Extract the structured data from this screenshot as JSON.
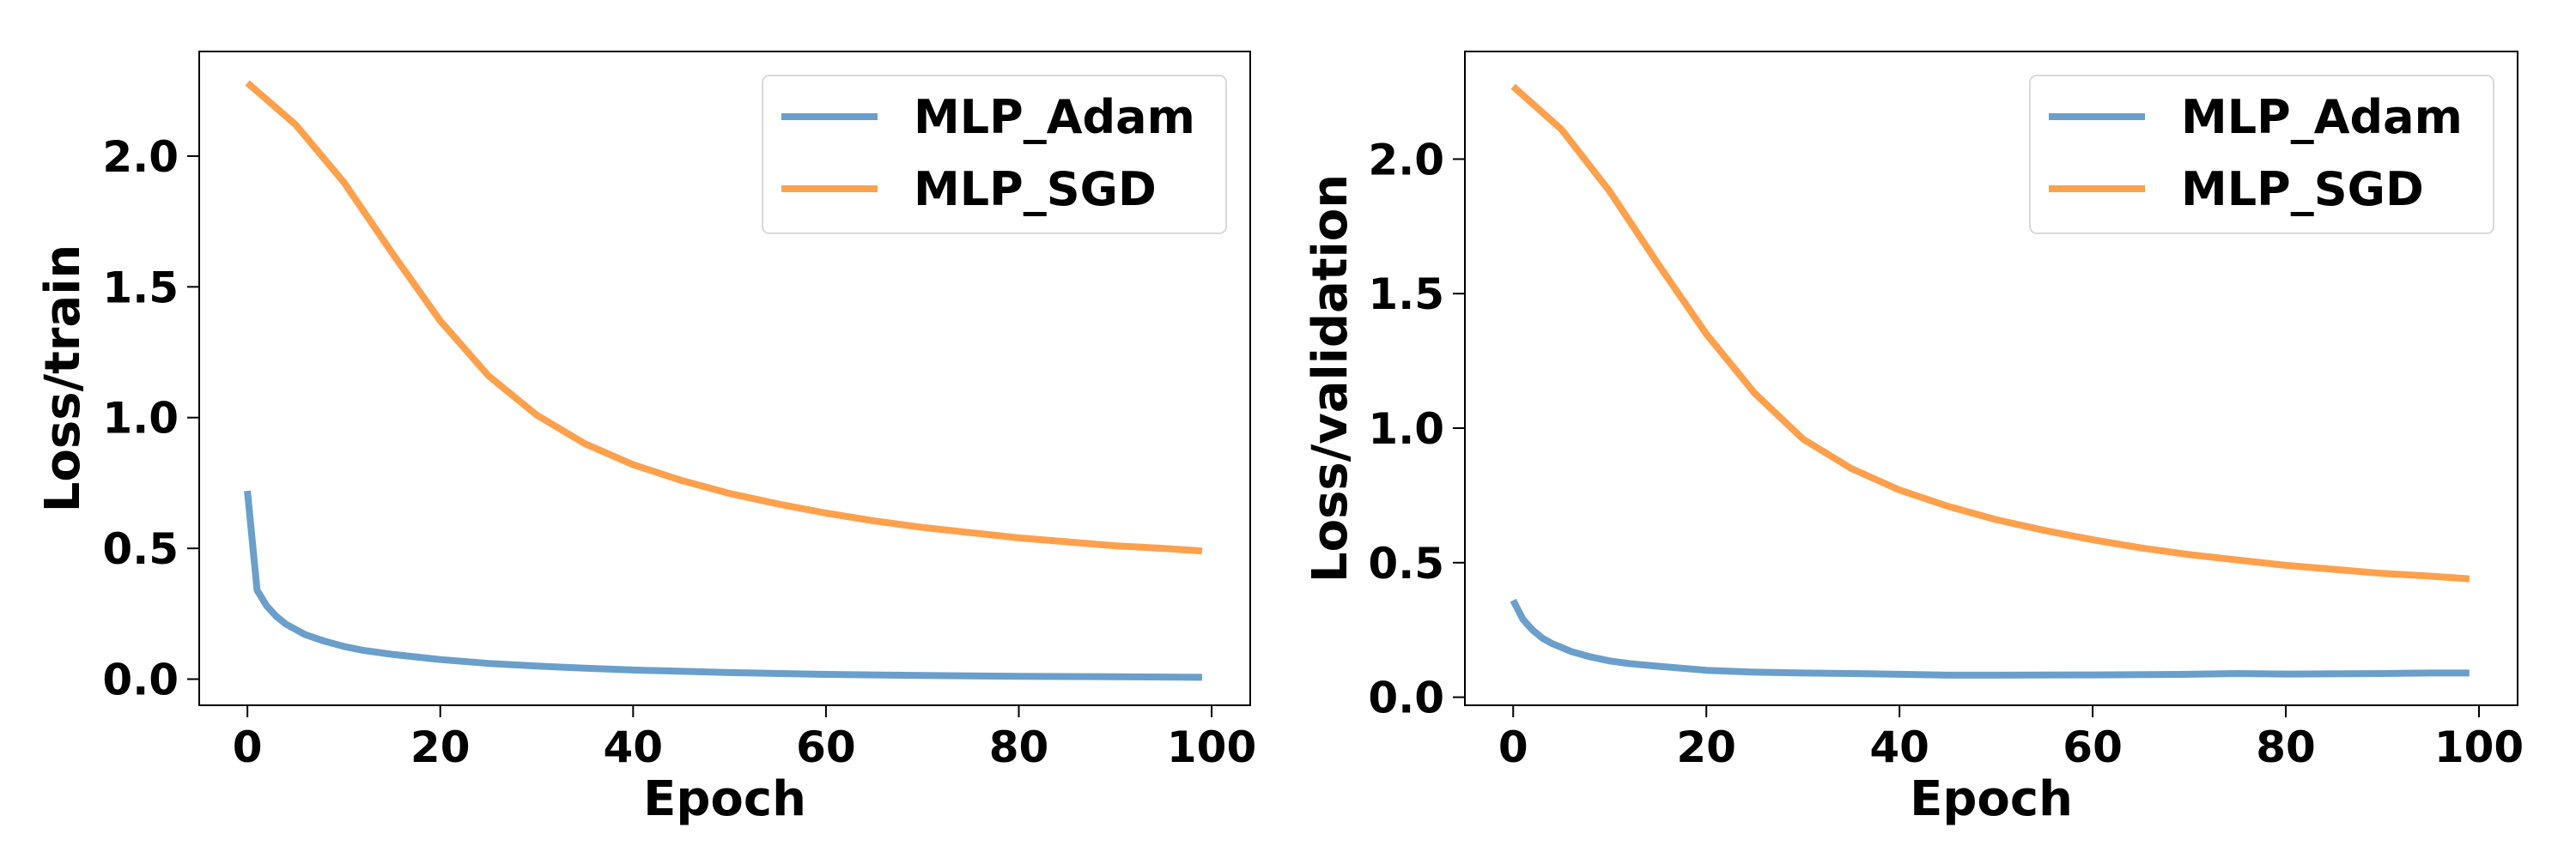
{
  "chart_data": [
    {
      "type": "line",
      "xlabel": "Epoch",
      "ylabel": "Loss/train",
      "xlim": [
        -5,
        104
      ],
      "ylim": [
        -0.1,
        2.4
      ],
      "xticks": [
        0,
        20,
        40,
        60,
        80,
        100
      ],
      "yticks": [
        0.0,
        0.5,
        1.0,
        1.5,
        2.0
      ],
      "xtick_labels": [
        "0",
        "20",
        "40",
        "60",
        "80",
        "100"
      ],
      "ytick_labels": [
        "0.0",
        "0.5",
        "1.0",
        "1.5",
        "2.0"
      ],
      "grid": false,
      "legend": "top-right",
      "series": [
        {
          "name": "MLP_Adam",
          "color": "#6a9fcb",
          "x": [
            0,
            1,
            2,
            3,
            4,
            5,
            6,
            8,
            10,
            12,
            15,
            20,
            25,
            30,
            35,
            40,
            50,
            60,
            70,
            80,
            90,
            99
          ],
          "y": [
            0.72,
            0.34,
            0.28,
            0.24,
            0.21,
            0.19,
            0.17,
            0.145,
            0.125,
            0.11,
            0.095,
            0.075,
            0.06,
            0.05,
            0.042,
            0.035,
            0.025,
            0.018,
            0.014,
            0.011,
            0.009,
            0.007
          ]
        },
        {
          "name": "MLP_SGD",
          "color": "#ffa04d",
          "x": [
            0,
            5,
            10,
            15,
            20,
            25,
            30,
            35,
            40,
            45,
            50,
            55,
            60,
            65,
            70,
            75,
            80,
            85,
            90,
            95,
            99
          ],
          "y": [
            2.28,
            2.12,
            1.9,
            1.63,
            1.37,
            1.16,
            1.01,
            0.9,
            0.82,
            0.76,
            0.71,
            0.67,
            0.635,
            0.605,
            0.58,
            0.56,
            0.54,
            0.525,
            0.51,
            0.5,
            0.49
          ]
        }
      ]
    },
    {
      "type": "line",
      "xlabel": "Epoch",
      "ylabel": "Loss/validation",
      "xlim": [
        -5,
        104
      ],
      "ylim": [
        -0.03,
        2.4
      ],
      "xticks": [
        0,
        20,
        40,
        60,
        80,
        100
      ],
      "yticks": [
        0.0,
        0.5,
        1.0,
        1.5,
        2.0
      ],
      "xtick_labels": [
        "0",
        "20",
        "40",
        "60",
        "80",
        "100"
      ],
      "ytick_labels": [
        "0.0",
        "0.5",
        "1.0",
        "1.5",
        "2.0"
      ],
      "grid": false,
      "legend": "top-right",
      "series": [
        {
          "name": "MLP_Adam",
          "color": "#6a9fcb",
          "x": [
            0,
            1,
            2,
            3,
            4,
            5,
            6,
            8,
            10,
            12,
            15,
            20,
            25,
            30,
            35,
            40,
            45,
            50,
            60,
            70,
            75,
            80,
            90,
            95,
            99
          ],
          "y": [
            0.36,
            0.29,
            0.25,
            0.22,
            0.2,
            0.185,
            0.17,
            0.15,
            0.135,
            0.125,
            0.115,
            0.1,
            0.093,
            0.09,
            0.088,
            0.085,
            0.082,
            0.082,
            0.083,
            0.085,
            0.088,
            0.086,
            0.088,
            0.09,
            0.09
          ]
        },
        {
          "name": "MLP_SGD",
          "color": "#ffa04d",
          "x": [
            0,
            5,
            10,
            15,
            20,
            25,
            30,
            35,
            40,
            45,
            50,
            55,
            60,
            65,
            70,
            75,
            80,
            85,
            90,
            95,
            99
          ],
          "y": [
            2.27,
            2.11,
            1.88,
            1.61,
            1.35,
            1.13,
            0.96,
            0.85,
            0.77,
            0.71,
            0.66,
            0.62,
            0.585,
            0.555,
            0.53,
            0.51,
            0.49,
            0.475,
            0.46,
            0.45,
            0.44
          ]
        }
      ]
    }
  ]
}
